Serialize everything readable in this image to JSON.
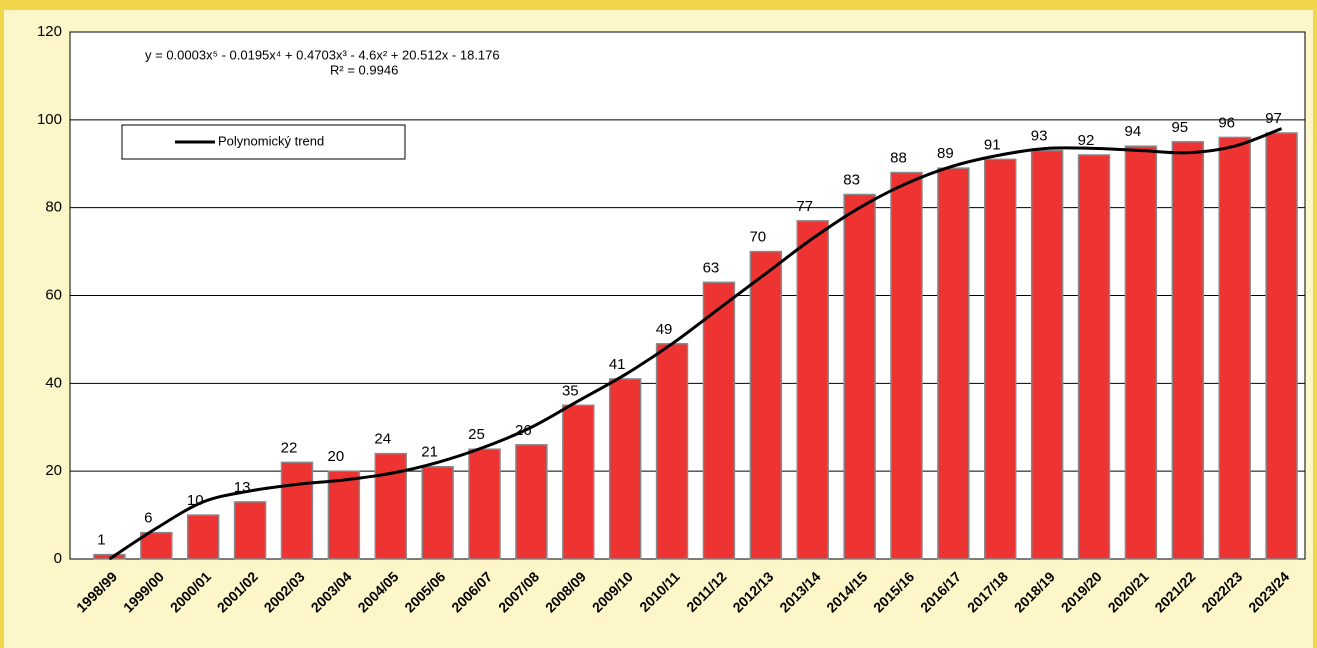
{
  "chart_data": {
    "type": "bar",
    "equation": "y = 0.0003x⁵ - 0.0195x⁴ + 0.4703x³ - 4.6x² + 20.512x - 18.176",
    "r_squared": "R² = 0.9946",
    "categories": [
      "1998/99",
      "1999/00",
      "2000/01",
      "2001/02",
      "2002/03",
      "2003/04",
      "2004/05",
      "2005/06",
      "2006/07",
      "2007/08",
      "2008/09",
      "2009/10",
      "2010/11",
      "2011/12",
      "2012/13",
      "2013/14",
      "2014/15",
      "2015/16",
      "2016/17",
      "2017/18",
      "2018/19",
      "2019/20",
      "2020/21",
      "2021/22",
      "2022/23",
      "2023/24"
    ],
    "values": [
      1,
      6,
      10,
      13,
      22,
      20,
      24,
      21,
      25,
      26,
      35,
      41,
      49,
      63,
      70,
      77,
      83,
      88,
      89,
      91,
      93,
      92,
      94,
      95,
      96,
      97
    ],
    "color": "#ee3333",
    "trend": {
      "name": "Polynomický trend",
      "color": "#000000",
      "values": [
        0,
        7,
        13,
        15.5,
        17,
        18,
        19.5,
        22,
        25.5,
        30,
        36,
        42,
        49,
        57,
        65,
        73,
        80,
        85.5,
        89.5,
        92,
        93.5,
        93.5,
        93,
        92.5,
        94,
        98
      ]
    },
    "ylim": [
      0,
      120
    ],
    "yticks": [
      0,
      20,
      40,
      60,
      80,
      100,
      120
    ],
    "grid": true
  }
}
